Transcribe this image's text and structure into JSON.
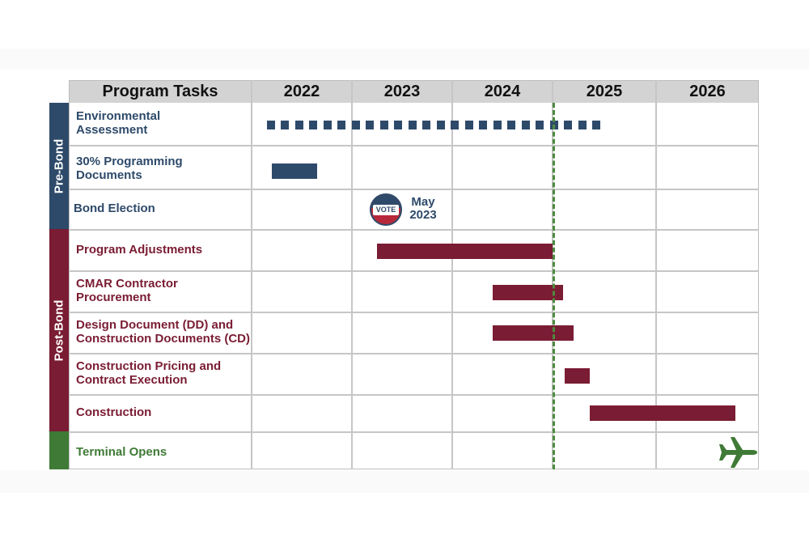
{
  "chart_data": {
    "type": "gantt",
    "header_label": "Program Tasks",
    "years": [
      "2022",
      "2023",
      "2024",
      "2025",
      "2026"
    ],
    "phases": [
      {
        "name": "Pre-Bond",
        "color": "#2e4a6a"
      },
      {
        "name": "Post-Bond",
        "color": "#7a1c33"
      }
    ],
    "tasks": [
      {
        "label_lines": [
          "Environmental",
          "Assessment"
        ],
        "phase": "Pre-Bond",
        "style": "dashed",
        "start": 2022.15,
        "end": 2025.45
      },
      {
        "label_lines": [
          "30% Programming",
          "Documents"
        ],
        "phase": "Pre-Bond",
        "style": "solid",
        "start": 2022.2,
        "end": 2022.65
      },
      {
        "label_lines": [
          "Bond Election"
        ],
        "phase": "Pre-Bond",
        "style": "milestone",
        "badge_text": "VOTE",
        "date_lines": [
          "May",
          "2023"
        ]
      },
      {
        "label_lines": [
          "Program Adjustments"
        ],
        "phase": "Post-Bond",
        "style": "solid",
        "start": 2023.25,
        "end": 2025.0
      },
      {
        "label_lines": [
          "CMAR Contractor",
          "Procurement"
        ],
        "phase": "Post-Bond",
        "style": "solid",
        "start": 2024.4,
        "end": 2025.1
      },
      {
        "label_lines": [
          "Design Document (DD) and",
          "Construction Documents (CD)"
        ],
        "phase": "Post-Bond",
        "style": "solid",
        "start": 2024.4,
        "end": 2025.2
      },
      {
        "label_lines": [
          "Construction Pricing and",
          "Contract Execution"
        ],
        "phase": "Post-Bond",
        "style": "solid",
        "start": 2025.12,
        "end": 2025.36
      },
      {
        "label_lines": [
          "Construction"
        ],
        "phase": "Post-Bond",
        "style": "solid",
        "start": 2025.36,
        "end": 2026.77
      },
      {
        "label_lines": [
          "Terminal Opens"
        ],
        "phase": "Opening",
        "style": "milestone-plane",
        "date": 2026.95
      }
    ],
    "today_marker": 2025.0,
    "colors": {
      "navy": "#2e4a6a",
      "maroon": "#7a1c33",
      "green": "#3f7a36",
      "header_bg": "#d3d3d3",
      "grid": "#c6c6c6"
    }
  }
}
